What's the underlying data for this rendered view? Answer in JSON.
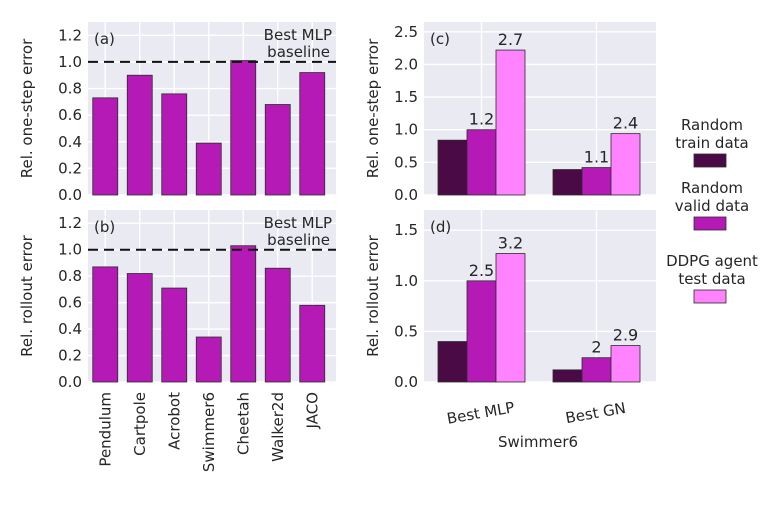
{
  "colors": {
    "panel_bg": "#EAEAF2",
    "grid": "#FFFFFF",
    "text": "#262626",
    "edge": "#2B2B2B",
    "train": "#4A0A46",
    "valid": "#B61AB6",
    "test": "#FF82FF",
    "baseline": "#111111"
  },
  "legend": {
    "items": [
      {
        "label_line1": "Random",
        "label_line2": "train data",
        "color": "#4A0A46"
      },
      {
        "label_line1": "Random",
        "label_line2": "valid data",
        "color": "#B61AB6"
      },
      {
        "label_line1": "DDPG agent",
        "label_line2": "test data",
        "color": "#FF82FF"
      }
    ]
  },
  "chart_data": [
    {
      "id": "a",
      "panel_label": "(a)",
      "type": "bar",
      "ylabel": "Rel. one-step error",
      "categories": [
        "Pendulum",
        "Cartpole",
        "Acrobot",
        "Swimmer6",
        "Cheetah",
        "Walker2d",
        "JACO"
      ],
      "values": [
        0.73,
        0.9,
        0.76,
        0.39,
        1.01,
        0.68,
        0.92
      ],
      "ylim": [
        0,
        1.3
      ],
      "yticks": [
        "0.0",
        "0.2",
        "0.4",
        "0.6",
        "0.8",
        "1.0",
        "1.2"
      ],
      "baseline": {
        "value": 1.0,
        "label_line1": "Best MLP",
        "label_line2": "baseline"
      },
      "show_category_labels": false
    },
    {
      "id": "b",
      "panel_label": "(b)",
      "type": "bar",
      "ylabel": "Rel. rollout error",
      "categories": [
        "Pendulum",
        "Cartpole",
        "Acrobot",
        "Swimmer6",
        "Cheetah",
        "Walker2d",
        "JACO"
      ],
      "values": [
        0.87,
        0.82,
        0.71,
        0.34,
        1.03,
        0.86,
        0.58
      ],
      "ylim": [
        0,
        1.3
      ],
      "yticks": [
        "0.0",
        "0.2",
        "0.4",
        "0.6",
        "0.8",
        "1.0",
        "1.2"
      ],
      "baseline": {
        "value": 1.0,
        "label_line1": "Best MLP",
        "label_line2": "baseline"
      },
      "show_category_labels": true
    },
    {
      "id": "c",
      "panel_label": "(c)",
      "type": "grouped_bar",
      "ylabel": "Rel. one-step error",
      "categories": [
        "Best MLP",
        "Best GN"
      ],
      "series": [
        {
          "name": "Random train data",
          "values": [
            0.84,
            0.39
          ]
        },
        {
          "name": "Random valid data",
          "values": [
            1.0,
            0.42
          ]
        },
        {
          "name": "DDPG agent test data",
          "values": [
            2.22,
            0.94
          ]
        }
      ],
      "annotations": [
        {
          "category": 0,
          "series": 1,
          "text": "1.2"
        },
        {
          "category": 0,
          "series": 2,
          "text": "2.7"
        },
        {
          "category": 1,
          "series": 1,
          "text": "1.1"
        },
        {
          "category": 1,
          "series": 2,
          "text": "2.4"
        }
      ],
      "ylim": [
        0,
        2.65
      ],
      "yticks": [
        "0.0",
        "0.5",
        "1.0",
        "1.5",
        "2.0",
        "2.5"
      ],
      "show_category_labels": false
    },
    {
      "id": "d",
      "panel_label": "(d)",
      "type": "grouped_bar",
      "ylabel": "Rel. rollout error",
      "xlabel": "Swimmer6",
      "categories": [
        "Best MLP",
        "Best GN"
      ],
      "series": [
        {
          "name": "Random train data",
          "values": [
            0.4,
            0.12
          ]
        },
        {
          "name": "Random valid data",
          "values": [
            1.0,
            0.24
          ]
        },
        {
          "name": "DDPG agent test data",
          "values": [
            1.27,
            0.36
          ]
        }
      ],
      "annotations": [
        {
          "category": 0,
          "series": 1,
          "text": "2.5"
        },
        {
          "category": 0,
          "series": 2,
          "text": "3.2"
        },
        {
          "category": 1,
          "series": 1,
          "text": "2"
        },
        {
          "category": 1,
          "series": 2,
          "text": "2.9"
        }
      ],
      "ylim": [
        0,
        1.7
      ],
      "yticks": [
        "0.0",
        "0.5",
        "1.0",
        "1.5"
      ],
      "show_category_labels": true
    }
  ]
}
